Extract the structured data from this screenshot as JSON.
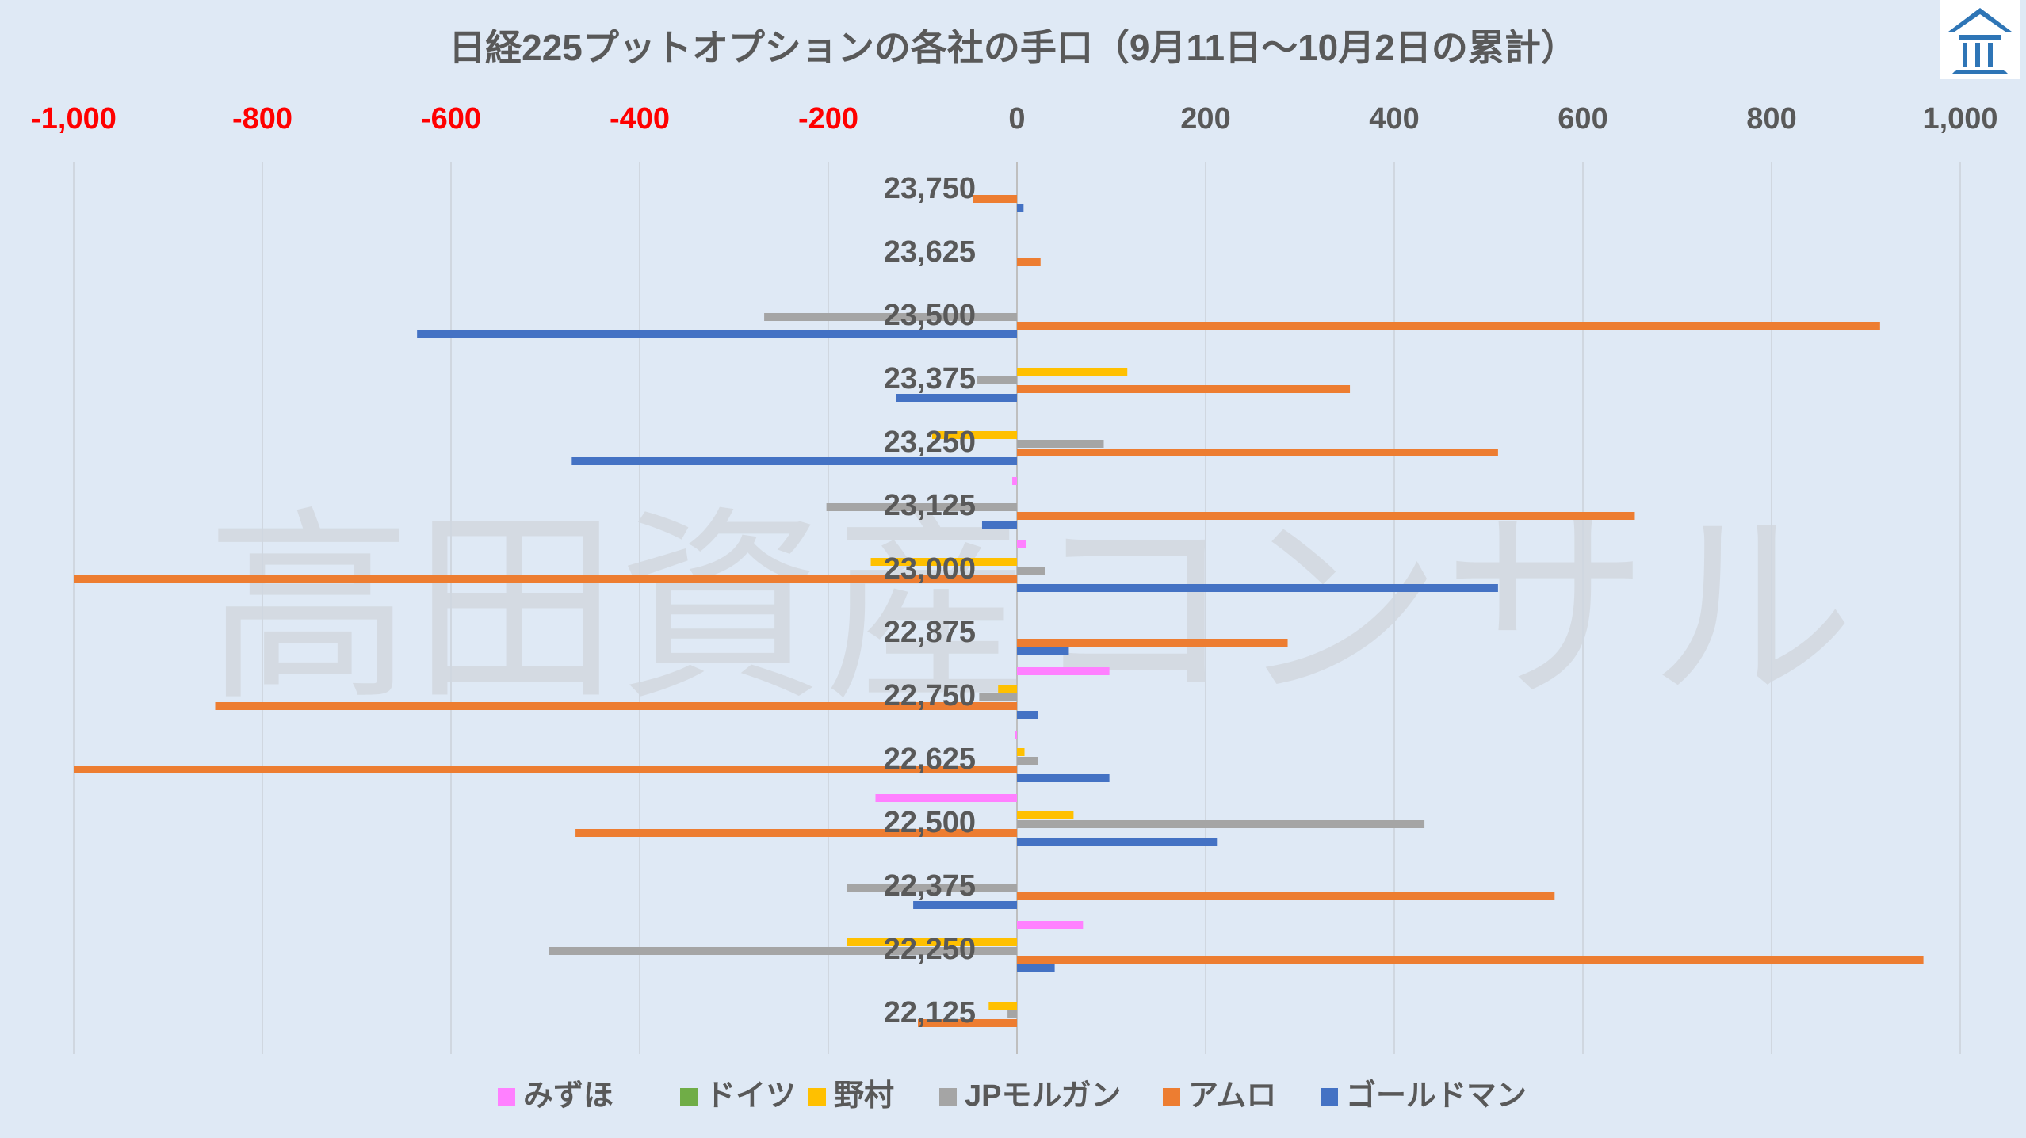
{
  "chart_data": {
    "type": "bar",
    "orientation": "horizontal",
    "title": "日経225プットオプションの各社の手口（9月11日～10月2日の累計）",
    "watermark": "高田資産コンサル",
    "xlim": [
      -1000,
      1000
    ],
    "xticks": [
      {
        "value": -1000,
        "label": "-1,000",
        "color": "#ff0000"
      },
      {
        "value": -800,
        "label": "-800",
        "color": "#ff0000"
      },
      {
        "value": -600,
        "label": "-600",
        "color": "#ff0000"
      },
      {
        "value": -400,
        "label": "-400",
        "color": "#ff0000"
      },
      {
        "value": -200,
        "label": "-200",
        "color": "#ff0000"
      },
      {
        "value": 0,
        "label": "0",
        "color": "#595959"
      },
      {
        "value": 200,
        "label": "200",
        "color": "#595959"
      },
      {
        "value": 400,
        "label": "400",
        "color": "#595959"
      },
      {
        "value": 600,
        "label": "600",
        "color": "#595959"
      },
      {
        "value": 800,
        "label": "800",
        "color": "#595959"
      },
      {
        "value": 1000,
        "label": "1,000",
        "color": "#595959"
      }
    ],
    "categories": [
      "23,750",
      "23,625",
      "23,500",
      "23,375",
      "23,250",
      "23,125",
      "23,000",
      "22,875",
      "22,750",
      "22,625",
      "22,500",
      "22,375",
      "22,250",
      "22,125"
    ],
    "series": [
      {
        "name": "みずほ",
        "color": "#ff80ff",
        "values": [
          0,
          0,
          0,
          0,
          0,
          -5,
          10,
          0,
          98,
          -2,
          -150,
          0,
          70,
          0
        ]
      },
      {
        "name": "ドイツ",
        "color": "#70ad47",
        "values": [
          0,
          0,
          0,
          0,
          0,
          0,
          0,
          0,
          0,
          0,
          0,
          0,
          0,
          0
        ]
      },
      {
        "name": "野村",
        "color": "#ffc000",
        "values": [
          0,
          0,
          0,
          117,
          -90,
          0,
          -155,
          0,
          -20,
          8,
          60,
          0,
          -180,
          -30
        ]
      },
      {
        "name": "JPモルガン",
        "color": "#a5a5a5",
        "values": [
          0,
          0,
          -268,
          -42,
          92,
          -202,
          30,
          0,
          -40,
          22,
          432,
          -180,
          -496,
          -10
        ]
      },
      {
        "name": "アムロ",
        "color": "#ed7d31",
        "values": [
          -47,
          25,
          915,
          353,
          510,
          655,
          -1000,
          287,
          -850,
          -1000,
          -468,
          570,
          961,
          -105
        ]
      },
      {
        "name": "ゴールドマン",
        "color": "#4472c4",
        "values": [
          7,
          0,
          -636,
          -128,
          -472,
          -37,
          510,
          55,
          22,
          98,
          212,
          -110,
          40,
          0
        ]
      }
    ]
  },
  "logo": {
    "icon": "building-logo-icon",
    "color": "#2e75b6"
  }
}
